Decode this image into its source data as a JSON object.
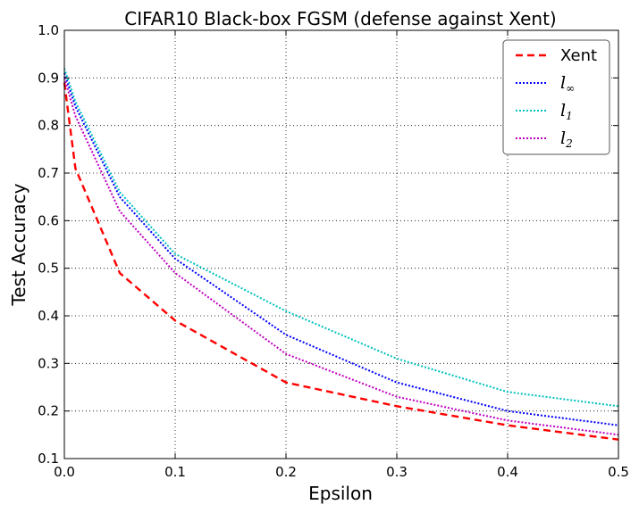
{
  "chart_data": {
    "type": "line",
    "title": "CIFAR10 Black-box FGSM (defense against Xent)",
    "xlabel": "Epsilon",
    "ylabel": "Test Accuracy",
    "xlim": [
      0.0,
      0.5
    ],
    "ylim": [
      0.1,
      1.0
    ],
    "xticks": [
      0.0,
      0.1,
      0.2,
      0.3,
      0.4,
      0.5
    ],
    "xtick_labels": [
      "0.0",
      "0.1",
      "0.2",
      "0.3",
      "0.4",
      "0.5"
    ],
    "yticks": [
      0.1,
      0.2,
      0.3,
      0.4,
      0.5,
      0.6,
      0.7,
      0.8,
      0.9,
      1.0
    ],
    "ytick_labels": [
      "0.1",
      "0.2",
      "0.3",
      "0.4",
      "0.5",
      "0.6",
      "0.7",
      "0.8",
      "0.9",
      "1.0"
    ],
    "grid": true,
    "legend_position": "top-right",
    "x": [
      0.0,
      0.01,
      0.05,
      0.1,
      0.2,
      0.3,
      0.4,
      0.5
    ],
    "series": [
      {
        "name": "Xent",
        "main": "Xent",
        "sub": "",
        "style": "dashed",
        "color": "#ff0000",
        "values": [
          0.89,
          0.71,
          0.49,
          0.39,
          0.26,
          0.21,
          0.17,
          0.14
        ]
      },
      {
        "name": "l∞",
        "main": "l",
        "sub": "∞",
        "style": "dotted",
        "color": "#0000ff",
        "values": [
          0.91,
          0.84,
          0.65,
          0.52,
          0.36,
          0.26,
          0.2,
          0.17
        ]
      },
      {
        "name": "l1",
        "main": "l",
        "sub": "1",
        "style": "dotted",
        "color": "#00c0c0",
        "values": [
          0.92,
          0.85,
          0.66,
          0.53,
          0.41,
          0.31,
          0.24,
          0.21
        ]
      },
      {
        "name": "l2",
        "main": "l",
        "sub": "2",
        "style": "dotted",
        "color": "#c000c0",
        "values": [
          0.9,
          0.82,
          0.62,
          0.49,
          0.32,
          0.23,
          0.18,
          0.15
        ]
      }
    ]
  }
}
